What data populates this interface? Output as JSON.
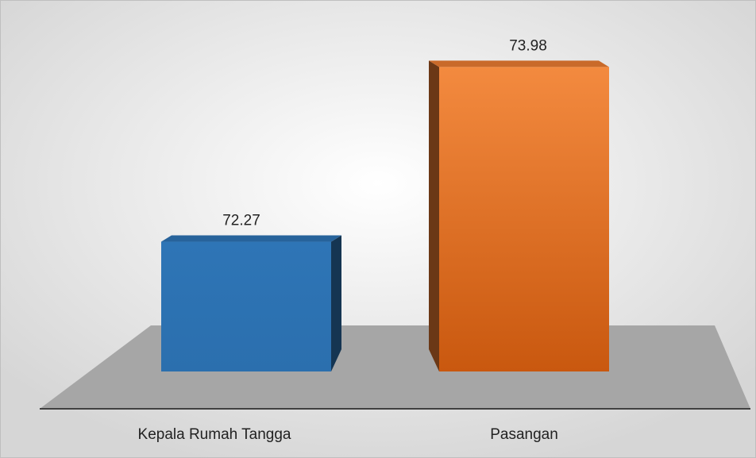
{
  "chart_data": {
    "type": "bar",
    "categories": [
      "Kepala Rumah Tangga",
      "Pasangan"
    ],
    "values": [
      72.27,
      73.98
    ],
    "colors": [
      "#2e75b6",
      "#ed7d31"
    ],
    "ylim": [
      71,
      74.5
    ]
  }
}
